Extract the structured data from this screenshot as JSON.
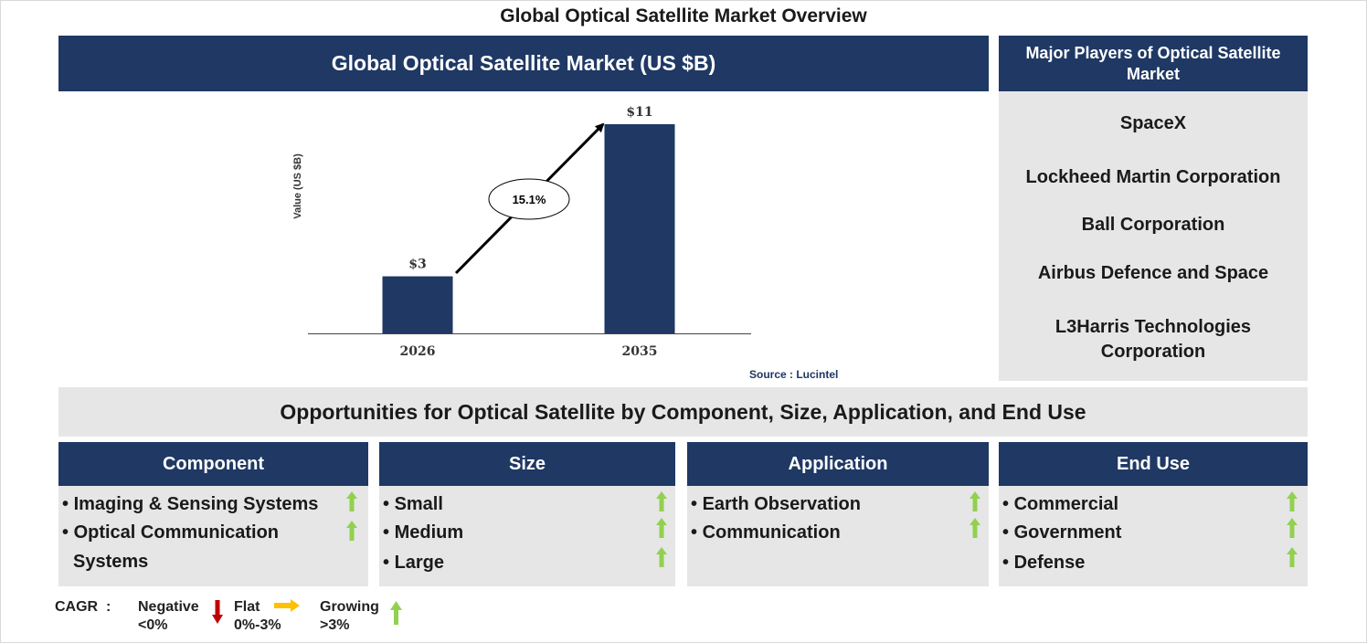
{
  "title": "Global Optical Satellite Market Overview",
  "chart_header": "Global Optical Satellite Market (US $B)",
  "players_header": "Major Players of Optical Satellite Market",
  "players": [
    "SpaceX",
    "Lockheed Martin Corporation",
    "Ball Corporation",
    "Airbus Defence and Space",
    "L3Harris Technologies Corporation"
  ],
  "chart_data": {
    "type": "bar",
    "categories": [
      "2026",
      "2035"
    ],
    "values": [
      3,
      11
    ],
    "value_labels": [
      "$3",
      "$11"
    ],
    "ylabel": "Value (US $B)",
    "ylim": [
      0,
      11
    ],
    "cagr_label": "15.1%",
    "bar_color": "#1f3864",
    "grid": false
  },
  "source": "Source : Lucintel",
  "opportunities_title": "Opportunities for Optical Satellite by Component, Size, Application, and End Use",
  "segments": [
    {
      "title": "Component",
      "items": [
        {
          "label": "Imaging & Sensing Systems",
          "trend": "growing"
        },
        {
          "label": "Optical Communication",
          "label2": "Systems",
          "trend": "growing"
        }
      ]
    },
    {
      "title": "Size",
      "items": [
        {
          "label": "Small",
          "trend": "growing"
        },
        {
          "label": "Medium",
          "trend": "growing"
        },
        {
          "label": "Large",
          "trend": "growing"
        }
      ]
    },
    {
      "title": "Application",
      "items": [
        {
          "label": "Earth Observation",
          "trend": "growing"
        },
        {
          "label": "Communication",
          "trend": "growing"
        }
      ]
    },
    {
      "title": "End Use",
      "items": [
        {
          "label": "Commercial",
          "trend": "growing"
        },
        {
          "label": "Government",
          "trend": "growing"
        },
        {
          "label": "Defense",
          "trend": "growing"
        }
      ]
    }
  ],
  "legend": {
    "cagr_label": "CAGR",
    "colon": ":",
    "negative": {
      "label": "Negative",
      "range": "<0%",
      "icon": "down-arrow-icon",
      "color": "#c00000"
    },
    "flat": {
      "label": "Flat",
      "range": "0%-3%",
      "icon": "right-arrow-icon",
      "color": "#ffc000"
    },
    "growing": {
      "label": "Growing",
      "range": ">3%",
      "icon": "up-arrow-icon",
      "color": "#92d050"
    }
  }
}
